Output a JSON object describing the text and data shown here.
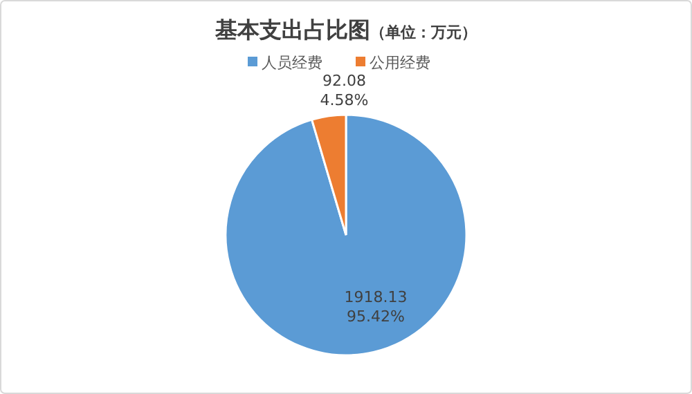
{
  "chart_data": {
    "type": "pie",
    "title": "基本支出占比图",
    "subtitle": "（单位：万元）",
    "categories": [
      "人员经费",
      "公用经费"
    ],
    "values": [
      1918.13,
      92.08
    ],
    "colors": [
      "#5b9bd5",
      "#ed7d31"
    ],
    "value_labels": [
      "1918.13\n95.42%",
      "92.08\n4.58%"
    ],
    "legend": "top"
  }
}
